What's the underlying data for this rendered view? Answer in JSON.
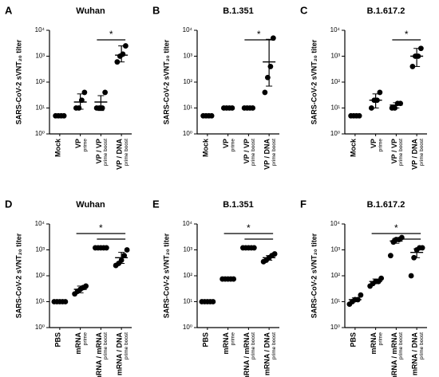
{
  "chart_data": [
    {
      "type": "scatter",
      "panel": "A",
      "title": "Wuhan",
      "ylabel": "SARS-CoV-2 sVNT₂₀ titer",
      "categories": [
        "Mock",
        "VP",
        "VP / VP",
        "VP / DNA"
      ],
      "sublabels": [
        null,
        "prime",
        "prime  boost",
        "prime  boost"
      ],
      "points": [
        [
          5,
          5,
          5,
          5
        ],
        [
          10,
          10,
          20,
          40
        ],
        [
          10,
          10,
          10,
          40
        ],
        [
          600,
          1000,
          1200,
          2500
        ]
      ],
      "means": [
        5,
        17,
        17,
        1100
      ],
      "err_low": [
        5,
        9,
        8,
        600
      ],
      "err_high": [
        5,
        35,
        30,
        2500
      ],
      "significance": {
        "label": "*",
        "pairs": [
          [
            2,
            3
          ]
        ]
      },
      "ylim": [
        1,
        10000
      ],
      "yticks": [
        {
          "value": 1,
          "label": "10⁰"
        },
        {
          "value": 10,
          "label": "10¹"
        },
        {
          "value": 100,
          "label": "10²"
        },
        {
          "value": 1000,
          "label": "10³"
        },
        {
          "value": 10000,
          "label": "10⁴"
        }
      ],
      "log": true,
      "color": "#000000"
    },
    {
      "type": "scatter",
      "panel": "B",
      "title": "B.1.351",
      "ylabel": "SARS-CoV-2 sVNT₂₀ titer",
      "categories": [
        "Mock",
        "VP",
        "VP / VP",
        "VP / DNA"
      ],
      "sublabels": [
        null,
        "prime",
        "prime  boost",
        "prime  boost"
      ],
      "points": [
        [
          5,
          5,
          5,
          5
        ],
        [
          10,
          10,
          10,
          10
        ],
        [
          10,
          10,
          10,
          10
        ],
        [
          40,
          150,
          400,
          5000
        ]
      ],
      "means": [
        5,
        10,
        10,
        600
      ],
      "err_low": [
        5,
        10,
        10,
        70
      ],
      "err_high": [
        5,
        10,
        10,
        4500
      ],
      "significance": {
        "label": "*",
        "pairs": [
          [
            2,
            3
          ]
        ]
      },
      "ylim": [
        1,
        10000
      ],
      "yticks": [
        {
          "value": 1,
          "label": "10⁰"
        },
        {
          "value": 10,
          "label": "10¹"
        },
        {
          "value": 100,
          "label": "10²"
        },
        {
          "value": 1000,
          "label": "10³"
        },
        {
          "value": 10000,
          "label": "10⁴"
        }
      ],
      "log": true,
      "color": "#000000"
    },
    {
      "type": "scatter",
      "panel": "C",
      "title": "B.1.617.2",
      "ylabel": "SARS-CoV-2 sVNT₂₀ titer",
      "categories": [
        "Mock",
        "VP",
        "VP / VP",
        "VP / DNA"
      ],
      "sublabels": [
        null,
        "prime",
        "prime  boost",
        "prime  boost"
      ],
      "points": [
        [
          5,
          5,
          5,
          5
        ],
        [
          10,
          20,
          20,
          40
        ],
        [
          10,
          10,
          15,
          15
        ],
        [
          400,
          1000,
          1000,
          2000
        ]
      ],
      "means": [
        5,
        20,
        13,
        1000
      ],
      "err_low": [
        5,
        10,
        10,
        400
      ],
      "err_high": [
        5,
        35,
        16,
        2000
      ],
      "significance": {
        "label": "*",
        "pairs": [
          [
            2,
            3
          ]
        ]
      },
      "ylim": [
        1,
        10000
      ],
      "yticks": [
        {
          "value": 1,
          "label": "10⁰"
        },
        {
          "value": 10,
          "label": "10¹"
        },
        {
          "value": 100,
          "label": "10²"
        },
        {
          "value": 1000,
          "label": "10³"
        },
        {
          "value": 10000,
          "label": "10⁴"
        }
      ],
      "log": true,
      "color": "#000000"
    },
    {
      "type": "scatter",
      "panel": "D",
      "title": "Wuhan",
      "ylabel": "SARS-CoV-2 sVNT₂₀ titer",
      "categories": [
        "PBS",
        "mRNA",
        "mRNA / mRNA",
        "mRNA / DNA"
      ],
      "sublabels": [
        null,
        "prime",
        "prime  boost",
        "prime  boost"
      ],
      "points": [
        [
          10,
          10,
          10,
          10,
          10
        ],
        [
          20,
          25,
          30,
          35,
          40
        ],
        [
          1200,
          1200,
          1200,
          1200,
          1200
        ],
        [
          250,
          300,
          400,
          600,
          1000
        ]
      ],
      "means": [
        10,
        30,
        1200,
        500
      ],
      "err_low": [
        10,
        22,
        1200,
        300
      ],
      "err_high": [
        10,
        40,
        1200,
        800
      ],
      "significance": {
        "label": "*",
        "pairs": [
          [
            1,
            3
          ],
          [
            2,
            3
          ]
        ]
      },
      "ylim": [
        1,
        10000
      ],
      "yticks": [
        {
          "value": 1,
          "label": "10⁰"
        },
        {
          "value": 10,
          "label": "10¹"
        },
        {
          "value": 100,
          "label": "10²"
        },
        {
          "value": 1000,
          "label": "10³"
        },
        {
          "value": 10000,
          "label": "10⁴"
        }
      ],
      "log": true,
      "color": "#000000"
    },
    {
      "type": "scatter",
      "panel": "E",
      "title": "B.1.351",
      "ylabel": "SARS-CoV-2 sVNT₂₀ titer",
      "categories": [
        "PBS",
        "mRNA",
        "mRNA / mRNA",
        "mRNA / DNA"
      ],
      "sublabels": [
        null,
        "prime",
        "prime  boost",
        "prime  boost"
      ],
      "points": [
        [
          10,
          10,
          10,
          10,
          10
        ],
        [
          75,
          75,
          75,
          75,
          75
        ],
        [
          1200,
          1200,
          1200,
          1200,
          1200
        ],
        [
          350,
          400,
          500,
          600,
          700
        ]
      ],
      "means": [
        10,
        75,
        1200,
        500
      ],
      "err_low": [
        10,
        75,
        1200,
        400
      ],
      "err_high": [
        10,
        75,
        1200,
        600
      ],
      "significance": {
        "label": "*",
        "pairs": [
          [
            1,
            3
          ],
          [
            2,
            3
          ]
        ]
      },
      "ylim": [
        1,
        10000
      ],
      "yticks": [
        {
          "value": 1,
          "label": "10⁰"
        },
        {
          "value": 10,
          "label": "10¹"
        },
        {
          "value": 100,
          "label": "10²"
        },
        {
          "value": 1000,
          "label": "10³"
        },
        {
          "value": 10000,
          "label": "10⁴"
        }
      ],
      "log": true,
      "color": "#000000"
    },
    {
      "type": "scatter",
      "panel": "F",
      "title": "B.1.617.2",
      "ylabel": "SARS-CoV-2 sVNT₂₀ titer",
      "categories": [
        "PBS",
        "mRNA",
        "mRNA / mRNA",
        "mRNA / DNA"
      ],
      "sublabels": [
        null,
        "prime",
        "prime  boost",
        "prime  boost"
      ],
      "points": [
        [
          8,
          10,
          12,
          12,
          18
        ],
        [
          40,
          50,
          60,
          60,
          80
        ],
        [
          600,
          2000,
          2500,
          2500,
          3000
        ],
        [
          100,
          500,
          1000,
          1200,
          1200
        ]
      ],
      "means": [
        12,
        60,
        2200,
        800
      ],
      "err_low": [
        10,
        50,
        1800,
        500
      ],
      "err_high": [
        14,
        75,
        2800,
        1100
      ],
      "significance": {
        "label": "*",
        "pairs": [
          [
            1,
            3
          ],
          [
            2,
            3
          ]
        ]
      },
      "ylim": [
        1,
        10000
      ],
      "yticks": [
        {
          "value": 1,
          "label": "10⁰"
        },
        {
          "value": 10,
          "label": "10¹"
        },
        {
          "value": 100,
          "label": "10²"
        },
        {
          "value": 1000,
          "label": "10³"
        },
        {
          "value": 10000,
          "label": "10⁴"
        }
      ],
      "log": true,
      "color": "#000000"
    }
  ]
}
